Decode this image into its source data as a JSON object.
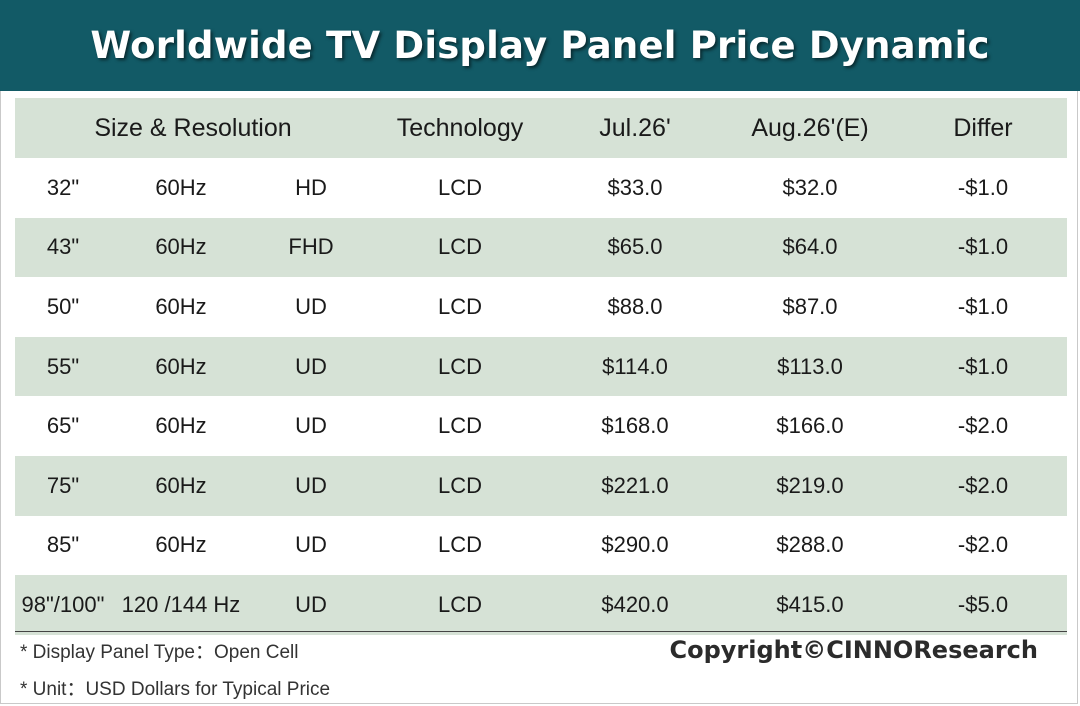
{
  "title": "Worldwide TV Display Panel Price Dynamic",
  "headers": {
    "size_resolution": "Size & Resolution",
    "technology": "Technology",
    "jul": "Jul.26'",
    "aug": "Aug.26'(E)",
    "differ": "Differ"
  },
  "rows": [
    {
      "size": "32\"",
      "hz": "60Hz",
      "res": "HD",
      "tech": "LCD",
      "jul": "$33.0",
      "aug": "$32.0",
      "diff": "-$1.0"
    },
    {
      "size": "43\"",
      "hz": "60Hz",
      "res": "FHD",
      "tech": "LCD",
      "jul": "$65.0",
      "aug": "$64.0",
      "diff": "-$1.0"
    },
    {
      "size": "50\"",
      "hz": "60Hz",
      "res": "UD",
      "tech": "LCD",
      "jul": "$88.0",
      "aug": "$87.0",
      "diff": "-$1.0"
    },
    {
      "size": "55\"",
      "hz": "60Hz",
      "res": "UD",
      "tech": "LCD",
      "jul": "$114.0",
      "aug": "$113.0",
      "diff": "-$1.0"
    },
    {
      "size": "65\"",
      "hz": "60Hz",
      "res": "UD",
      "tech": "LCD",
      "jul": "$168.0",
      "aug": "$166.0",
      "diff": "-$2.0"
    },
    {
      "size": "75\"",
      "hz": "60Hz",
      "res": "UD",
      "tech": "LCD",
      "jul": "$221.0",
      "aug": "$219.0",
      "diff": "-$2.0"
    },
    {
      "size": "85\"",
      "hz": "60Hz",
      "res": "UD",
      "tech": "LCD",
      "jul": "$290.0",
      "aug": "$288.0",
      "diff": "-$2.0"
    },
    {
      "size": "98\"/100\"",
      "hz": "120 /144 Hz",
      "res": "UD",
      "tech": "LCD",
      "jul": "$420.0",
      "aug": "$415.0",
      "diff": "-$5.0"
    }
  ],
  "footnotes": {
    "panel_type": "* Display Panel Type：Open Cell",
    "unit": "* Unit：USD Dollars for Typical Price"
  },
  "copyright": "Copyright©CINNOResearch",
  "colors": {
    "title_bg": "#125a66",
    "band": "#d6e2d6"
  },
  "chart_data": {
    "type": "table",
    "title": "Worldwide TV Display Panel Price Dynamic",
    "columns": [
      "Size & Resolution",
      "Technology",
      "Jul.26'",
      "Aug.26'(E)",
      "Differ"
    ],
    "rows": [
      [
        "32\" 60Hz HD",
        "LCD",
        33.0,
        32.0,
        -1.0
      ],
      [
        "43\" 60Hz FHD",
        "LCD",
        65.0,
        64.0,
        -1.0
      ],
      [
        "50\" 60Hz UD",
        "LCD",
        88.0,
        87.0,
        -1.0
      ],
      [
        "55\" 60Hz UD",
        "LCD",
        114.0,
        113.0,
        -1.0
      ],
      [
        "65\" 60Hz UD",
        "LCD",
        168.0,
        166.0,
        -2.0
      ],
      [
        "75\" 60Hz UD",
        "LCD",
        221.0,
        219.0,
        -2.0
      ],
      [
        "85\" 60Hz UD",
        "LCD",
        290.0,
        288.0,
        -2.0
      ],
      [
        "98\"/100\" 120 /144 Hz UD",
        "LCD",
        420.0,
        415.0,
        -5.0
      ]
    ]
  }
}
